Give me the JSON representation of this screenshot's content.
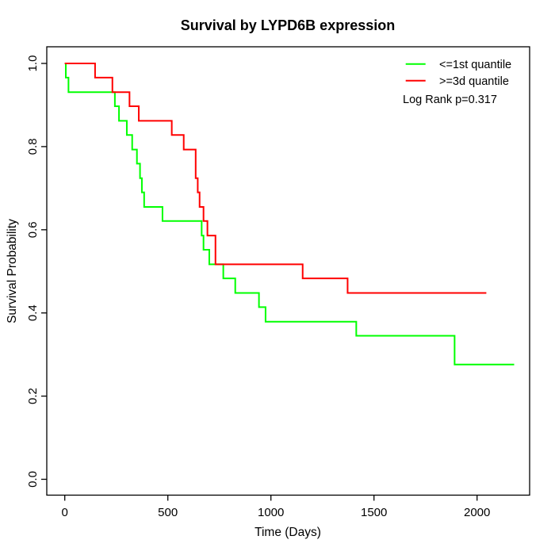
{
  "chart_data": {
    "type": "line",
    "subtype": "kaplan-meier-step-curves",
    "title": "Survival by LYPD6B expression",
    "xlabel": "Time (Days)",
    "ylabel": "Survival Probability",
    "x_tick_values": [
      0,
      500,
      1000,
      1500,
      2000
    ],
    "x_tick_labels": [
      "0",
      "500",
      "1000",
      "1500",
      "2000"
    ],
    "y_tick_values": [
      0.0,
      0.2,
      0.4,
      0.6,
      0.8,
      1.0
    ],
    "y_tick_labels": [
      "0.0",
      "0.2",
      "0.4",
      "0.6",
      "0.8",
      "1.0"
    ],
    "xlim": [
      0,
      2200
    ],
    "ylim": [
      0.0,
      1.0
    ],
    "grid": false,
    "legend_position": "top-right",
    "annotation": "Log Rank p=0.317",
    "axis_color": "#000000",
    "series": [
      {
        "name": "<=1st quantile",
        "color": "#00FF00",
        "start": [
          0,
          1.0
        ],
        "steps": [
          [
            5,
            0.966
          ],
          [
            18,
            0.931
          ],
          [
            243,
            0.897
          ],
          [
            263,
            0.862
          ],
          [
            301,
            0.828
          ],
          [
            327,
            0.793
          ],
          [
            350,
            0.759
          ],
          [
            365,
            0.724
          ],
          [
            374,
            0.69
          ],
          [
            385,
            0.655
          ],
          [
            474,
            0.621
          ],
          [
            664,
            0.586
          ],
          [
            673,
            0.552
          ],
          [
            701,
            0.517
          ],
          [
            769,
            0.483
          ],
          [
            827,
            0.448
          ],
          [
            942,
            0.414
          ],
          [
            974,
            0.379
          ],
          [
            1414,
            0.345
          ],
          [
            1891,
            0.276
          ]
        ],
        "end_time": 2180
      },
      {
        "name": ">=3d quantile",
        "color": "#FF0000",
        "start": [
          0,
          1.0
        ],
        "steps": [
          [
            147,
            0.966
          ],
          [
            231,
            0.931
          ],
          [
            314,
            0.897
          ],
          [
            359,
            0.862
          ],
          [
            519,
            0.828
          ],
          [
            577,
            0.793
          ],
          [
            635,
            0.724
          ],
          [
            645,
            0.69
          ],
          [
            654,
            0.655
          ],
          [
            673,
            0.621
          ],
          [
            692,
            0.586
          ],
          [
            731,
            0.517
          ],
          [
            1154,
            0.483
          ],
          [
            1372,
            0.448
          ]
        ],
        "end_time": 2045
      }
    ]
  }
}
